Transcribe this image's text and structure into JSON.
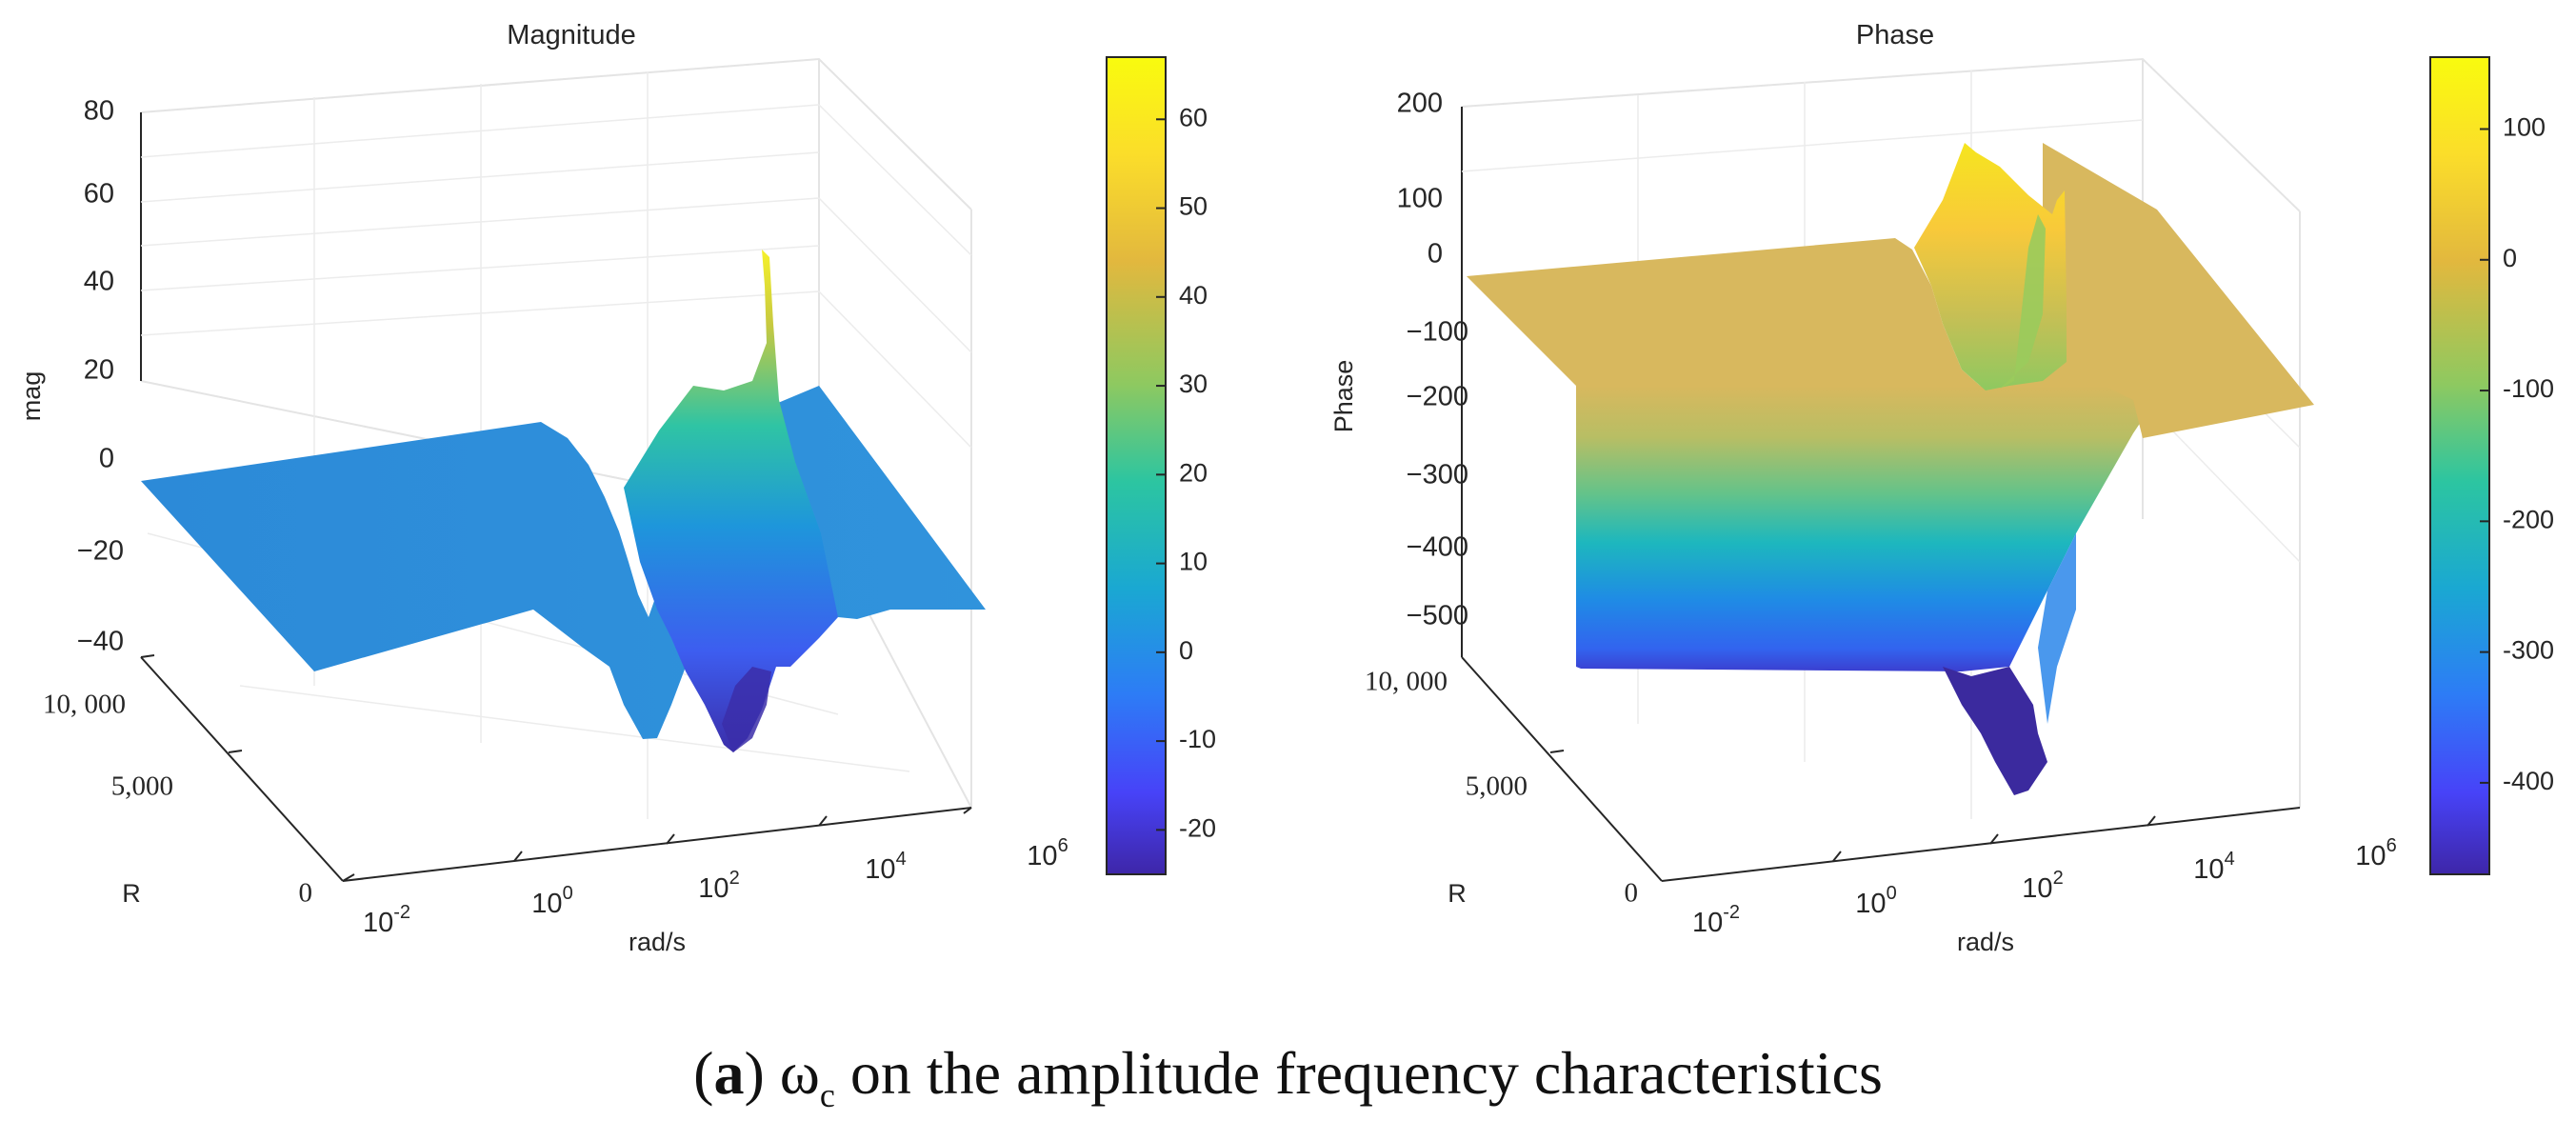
{
  "caption": {
    "label": "a",
    "open": "(",
    "close": ")",
    "symbol": "ω",
    "subscript": "c",
    "text": " on the amplitude frequency characteristics"
  },
  "colors": {
    "parula": [
      "#3e26a8",
      "#4743f8",
      "#2d7cf6",
      "#1aa8d2",
      "#2cc5a1",
      "#8ec960",
      "#e2b83e",
      "#fbdd2a",
      "#f9fb0e"
    ],
    "axis": "#262626",
    "grid": "#e6e6e6"
  },
  "chart_data": [
    {
      "type": "surface",
      "title": "Magnitude",
      "xlabel": "rad/s",
      "ylabel": "R",
      "zlabel": "mag",
      "x_ticks": [
        {
          "base": "10",
          "exp": "-2"
        },
        {
          "base": "10",
          "exp": "0"
        },
        {
          "base": "10",
          "exp": "2"
        },
        {
          "base": "10",
          "exp": "4"
        },
        {
          "base": "10",
          "exp": "6"
        }
      ],
      "y_ticks": [
        "0",
        "5,000",
        "10, 000"
      ],
      "z_ticks": [
        "80",
        "60",
        "40",
        "20",
        "0",
        "−20",
        "−40"
      ],
      "zlim": [
        -40,
        80
      ],
      "colorbar": {
        "ticks": [
          "60",
          "50",
          "40",
          "30",
          "20",
          "10",
          "0",
          "-10",
          "-20"
        ],
        "range": [
          -25,
          67
        ]
      },
      "features": {
        "flat_level": 0,
        "peak_max": 67,
        "trough_min": -25,
        "peak_frequency": "10^2 rad/s"
      }
    },
    {
      "type": "surface",
      "title": "Phase",
      "xlabel": "rad/s",
      "ylabel": "R",
      "zlabel": "Phase",
      "x_ticks": [
        {
          "base": "10",
          "exp": "-2"
        },
        {
          "base": "10",
          "exp": "0"
        },
        {
          "base": "10",
          "exp": "2"
        },
        {
          "base": "10",
          "exp": "4"
        },
        {
          "base": "10",
          "exp": "6"
        }
      ],
      "y_ticks": [
        "0",
        "5,000",
        "10, 000"
      ],
      "z_ticks": [
        "200",
        "100",
        "0",
        "−100",
        "−200",
        "−300",
        "−400",
        "−500"
      ],
      "zlim": [
        -500,
        200
      ],
      "colorbar": {
        "ticks": [
          "100",
          "0",
          "-100",
          "-200",
          "-300",
          "-400"
        ],
        "range": [
          -470,
          155
        ]
      },
      "features": {
        "flat_level": 0,
        "peak_max": 155,
        "trough_min": -470,
        "peak_frequency": "10^2 rad/s"
      }
    }
  ]
}
